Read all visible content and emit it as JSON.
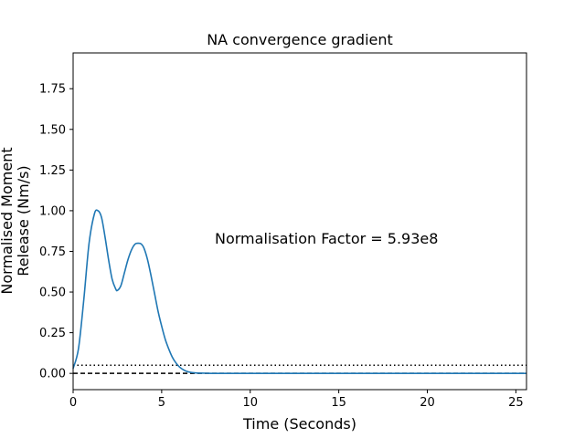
{
  "chart_data": {
    "type": "line",
    "title": "NA convergence gradient",
    "xlabel": "Time (Seconds)",
    "ylabel_lines": [
      "Normalised Moment",
      "Release (Nm/s)"
    ],
    "xlim": [
      0,
      25.6
    ],
    "ylim": [
      -0.1,
      1.97
    ],
    "xticks": [
      0,
      5,
      10,
      15,
      20,
      25
    ],
    "xtick_labels": [
      "0",
      "5",
      "10",
      "15",
      "20",
      "25"
    ],
    "yticks": [
      0.0,
      0.25,
      0.5,
      0.75,
      1.0,
      1.25,
      1.5,
      1.75
    ],
    "ytick_labels": [
      "0.00",
      "0.25",
      "0.50",
      "0.75",
      "1.00",
      "1.25",
      "1.50",
      "1.75"
    ],
    "annotation": "Normalisation Factor = 5.93e8",
    "series": [
      {
        "color": "#1f77b4",
        "style": "solid",
        "x": [
          0,
          0.3,
          0.6,
          0.9,
          1.2,
          1.4,
          1.6,
          1.8,
          2.0,
          2.2,
          2.4,
          2.5,
          2.7,
          2.9,
          3.1,
          3.3,
          3.5,
          3.7,
          3.85,
          4.0,
          4.2,
          4.4,
          4.6,
          4.8,
          5.0,
          5.2,
          5.4,
          5.6,
          5.8,
          6.0,
          6.2,
          6.4,
          6.6,
          6.8,
          7.0,
          7.5,
          8.0,
          10,
          15,
          20,
          25.6
        ],
        "y": [
          0.03,
          0.15,
          0.45,
          0.8,
          0.98,
          1.0,
          0.96,
          0.84,
          0.7,
          0.58,
          0.52,
          0.51,
          0.54,
          0.62,
          0.7,
          0.76,
          0.795,
          0.8,
          0.795,
          0.77,
          0.7,
          0.6,
          0.49,
          0.38,
          0.29,
          0.21,
          0.15,
          0.1,
          0.065,
          0.04,
          0.024,
          0.013,
          0.007,
          0.004,
          0.002,
          0.001,
          0.0,
          0.0,
          0.0,
          0.0,
          0.0
        ]
      }
    ],
    "hlines": [
      {
        "y": 0.05,
        "style": "dotted",
        "color": "#000000"
      },
      {
        "y": 0.0,
        "style": "dashed",
        "color": "#000000"
      }
    ]
  }
}
